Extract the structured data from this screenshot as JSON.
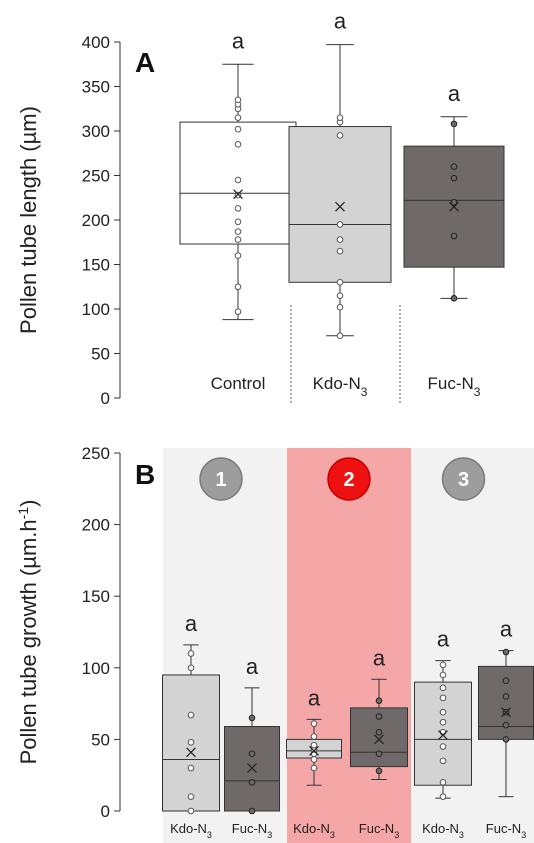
{
  "chart_data": [
    {
      "type": "box",
      "panel_label": "A",
      "ylabel": "Pollen tube length (µm)",
      "ylim": [
        0,
        400
      ],
      "yticks": [
        0,
        50,
        100,
        150,
        200,
        250,
        300,
        350,
        400
      ],
      "categories": [
        {
          "name": "Control",
          "sub": ""
        },
        {
          "name": "Kdo-N",
          "sub": "3"
        },
        {
          "name": "Fuc-N",
          "sub": "3"
        }
      ],
      "boxes": [
        {
          "min": 88,
          "q1": 173,
          "median": 230,
          "q3": 310,
          "max": 375,
          "mean": 229,
          "sig": "a",
          "fill": "#ffffff",
          "points": [
            97,
            125,
            160,
            178,
            187,
            198,
            213,
            228,
            245,
            285,
            302,
            315,
            325,
            330,
            335
          ]
        },
        {
          "min": 70,
          "q1": 130,
          "median": 195,
          "q3": 305,
          "max": 397,
          "mean": 215,
          "sig": "a",
          "fill": "#d3d3d3",
          "points": [
            70,
            102,
            115,
            130,
            165,
            178,
            195,
            295,
            310,
            315
          ]
        },
        {
          "min": 112,
          "q1": 147,
          "median": 222,
          "q3": 283,
          "max": 316,
          "mean": 215,
          "sig": "a",
          "fill": "#6f6a69",
          "points": [
            112,
            182,
            220,
            247,
            260,
            308
          ]
        }
      ]
    },
    {
      "type": "box",
      "panel_label": "B",
      "ylabel": "Pollen tube growth (µm.h",
      "ylabel_sup": "-1",
      "ylabel_end": ")",
      "ylim": [
        0,
        250
      ],
      "yticks": [
        0,
        50,
        100,
        150,
        200,
        250
      ],
      "groups": [
        {
          "label": "1",
          "bg": "#f2f2f2",
          "badge": "#9d9d9d"
        },
        {
          "label": "2",
          "bg": "#f5a7a7",
          "badge": "#ee1111"
        },
        {
          "label": "3",
          "bg": "#f2f2f2",
          "badge": "#9d9d9d"
        }
      ],
      "categories": [
        {
          "name": "Kdo-N",
          "sub": "3"
        },
        {
          "name": "Fuc-N",
          "sub": "3"
        },
        {
          "name": "Kdo-N",
          "sub": "3"
        },
        {
          "name": "Fuc-N",
          "sub": "3"
        },
        {
          "name": "Kdo-N",
          "sub": "3"
        },
        {
          "name": "Fuc-N",
          "sub": "3"
        }
      ],
      "boxes": [
        {
          "min": 0,
          "q1": 0,
          "median": 36,
          "q3": 95,
          "max": 116,
          "mean": 41,
          "sig": "a",
          "fill": "#d3d3d3",
          "points": [
            0,
            10,
            30,
            48,
            67,
            100,
            110
          ]
        },
        {
          "min": 0,
          "q1": 0,
          "median": 21,
          "q3": 59,
          "max": 86,
          "mean": 30,
          "sig": "a",
          "fill": "#6f6a69",
          "points": [
            0,
            20,
            40,
            65
          ]
        },
        {
          "min": 18,
          "q1": 37,
          "median": 42,
          "q3": 50,
          "max": 64,
          "mean": 42,
          "sig": "a",
          "fill": "#d3d3d3",
          "points": [
            30,
            36,
            40,
            43,
            46,
            52,
            61
          ]
        },
        {
          "min": 22,
          "q1": 31,
          "median": 41,
          "q3": 72,
          "max": 92,
          "mean": 50,
          "sig": "a",
          "fill": "#6f6a69",
          "points": [
            28,
            40,
            55,
            66,
            77
          ]
        },
        {
          "min": 9,
          "q1": 18,
          "median": 50,
          "q3": 90,
          "max": 105,
          "mean": 53,
          "sig": "a",
          "fill": "#d3d3d3",
          "points": [
            10,
            20,
            35,
            45,
            55,
            62,
            69,
            79,
            86,
            95,
            102
          ]
        },
        {
          "min": 10,
          "q1": 50,
          "median": 59,
          "q3": 101,
          "max": 112,
          "mean": 69,
          "sig": "a",
          "fill": "#6f6a69",
          "points": [
            50,
            60,
            69,
            80,
            91,
            111
          ]
        }
      ]
    }
  ]
}
